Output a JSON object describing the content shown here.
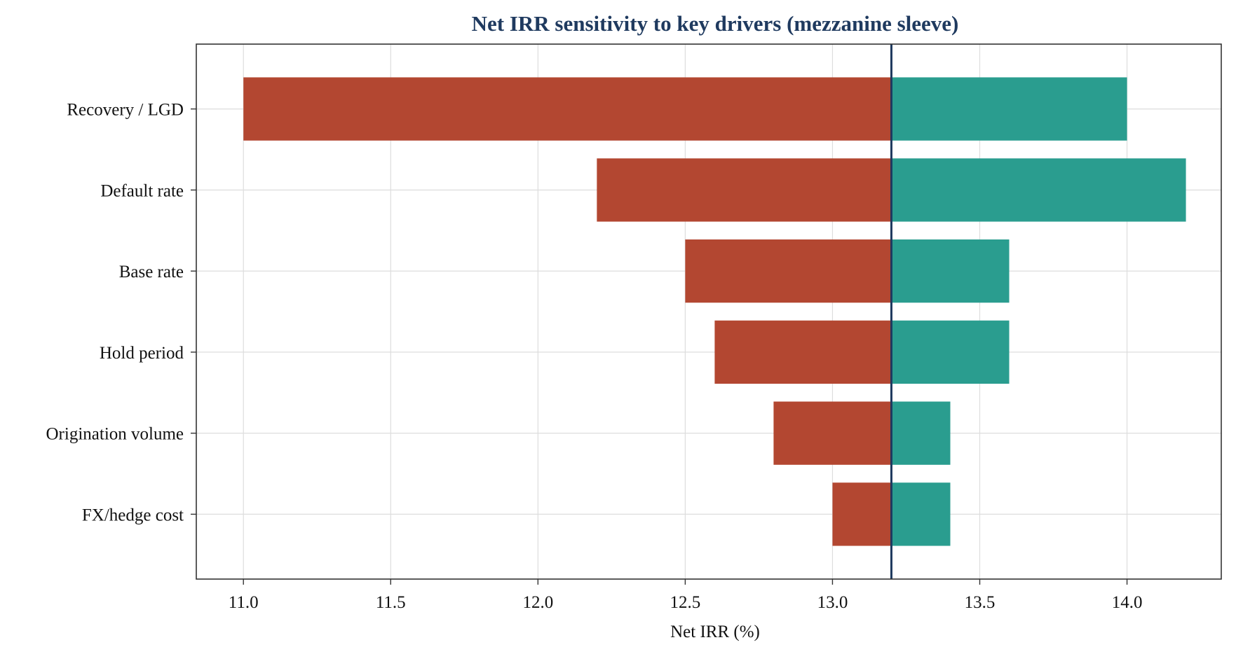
{
  "chart_data": {
    "type": "bar",
    "orientation": "horizontal",
    "variant": "tornado",
    "title": "Net IRR sensitivity to key drivers (mezzanine sleeve)",
    "xlabel": "Net IRR (%)",
    "ylabel": "",
    "base_value": 13.2,
    "xlim": [
      10.84,
      14.32
    ],
    "xticks": [
      "11.0",
      "11.5",
      "12.0",
      "12.5",
      "13.0",
      "13.5",
      "14.0"
    ],
    "grid": true,
    "categories": [
      "Recovery / LGD",
      "Default rate",
      "Base rate",
      "Hold period",
      "Origination volume",
      "FX/hedge cost"
    ],
    "low_values": [
      11.0,
      12.2,
      12.5,
      12.6,
      12.8,
      13.0
    ],
    "high_values": [
      14.0,
      14.2,
      13.6,
      13.6,
      13.4,
      13.4
    ],
    "colors": {
      "low": "#b34731",
      "high": "#2a9d8f",
      "base_line": "#1f3a5f",
      "title": "#1f3a5f",
      "grid": "#dddddd",
      "frame": "#333333"
    }
  }
}
